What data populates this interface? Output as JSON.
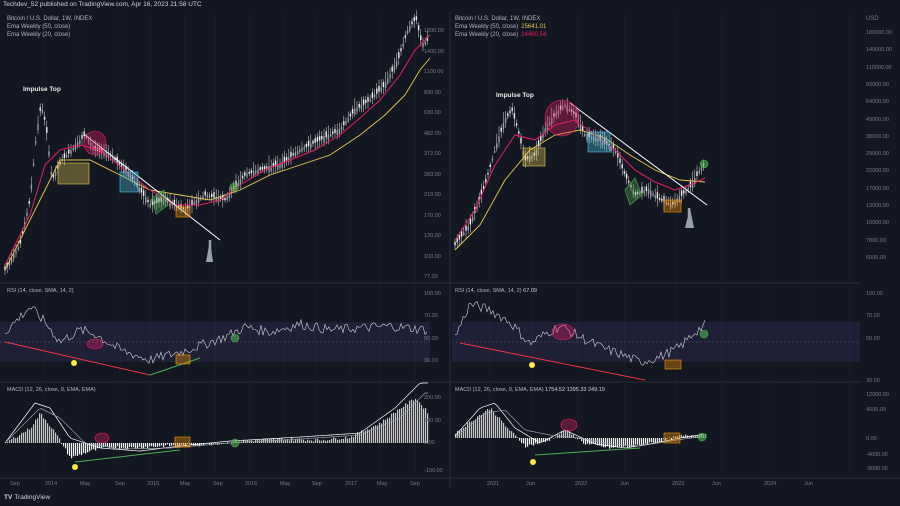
{
  "header": {
    "text": "Techdev_52 published on TradingView.com, Apr 16, 2023 21:58 UTC"
  },
  "brand": {
    "mark": "TV",
    "text": "TradingView"
  },
  "left": {
    "legend_title": "Bitcoin / U.S. Dollar, 1W, INDEX",
    "ema50": "Ema Weekly (50, close)",
    "ema20": "Ema Weekly (20, close)",
    "annotation": "Impulse Top",
    "rsi_legend": "RSI (14, close, SMA, 14, 2)",
    "macd_legend": "MACD (12, 26, close, 9, EMA, EMA)",
    "price_ticks": [
      "1800.00",
      "1400.00",
      "1100.00",
      "830.00",
      "630.00",
      "482.00",
      "372.00",
      "283.00",
      "219.00",
      "170.00",
      "130.00",
      "100.00",
      "77.00"
    ],
    "rsi_ticks": [
      "100.00",
      "70.00",
      "50.00",
      "30.00"
    ],
    "macd_ticks": [
      "200.00",
      "100.00",
      "0.00",
      "-100.00"
    ],
    "x_ticks": [
      "Sep",
      "2014",
      "May",
      "Sep",
      "2015",
      "May",
      "Sep",
      "2016",
      "May",
      "Sep",
      "2017",
      "May",
      "Sep"
    ]
  },
  "right": {
    "legend_title": "Bitcoin / U.S. Dollar, 1W, INDEX",
    "ema50": "Ema Weekly (50, close)",
    "ema50_val": "25641.01",
    "ema20": "Ema Weekly (20, close)",
    "ema20_val": "24460.54",
    "annotation": "Impulse Top",
    "rsi_legend": "RSI (14, close, SMA, 14, 2)",
    "rsi_val": "67.09",
    "macd_legend": "MACD (12, 26, close, 9, EMA, EMA)",
    "macd_vals": "1754.52  1395.33  249.19",
    "usd": "USD",
    "price_ticks": [
      "180000.00",
      "140000.00",
      "110000.00",
      "83000.00",
      "64000.00",
      "49000.00",
      "38000.00",
      "29000.00",
      "22000.00",
      "17000.00",
      "13000.00",
      "10000.00",
      "7800.00",
      "6000.00"
    ],
    "rsi_ticks": [
      "100.00",
      "70.00",
      "50.00",
      "30.00"
    ],
    "macd_ticks": [
      "12000.00",
      "4000.00",
      "0.00",
      "-4000.00",
      "-8000.00"
    ],
    "x_ticks": [
      "2021",
      "Jun",
      "2022",
      "Jun",
      "2023",
      "Jun",
      "2024",
      "Jun"
    ]
  },
  "colors": {
    "ema50": "#e6c94a",
    "ema20": "#e91e63",
    "candle": "#e0e0e0",
    "rsi": "#d1d4dc",
    "band": "#7e57c2",
    "trend_red": "#f23645",
    "trend_green": "#4caf50",
    "dot": "#ffeb3b",
    "grid": "#1f2330",
    "separator": "#2a2e39"
  },
  "chart_data": [
    {
      "type": "line",
      "panel": "left-price",
      "scale": "log",
      "x": [
        "2013-08",
        "2013-11",
        "2014-01",
        "2014-05",
        "2014-09",
        "2015-01",
        "2015-05",
        "2015-09",
        "2016-01",
        "2016-05",
        "2016-09",
        "2017-01",
        "2017-05",
        "2017-09"
      ],
      "series": [
        {
          "name": "Bitcoin / U.S. Dollar",
          "values": [
            100,
            400,
            900,
            500,
            450,
            230,
            230,
            240,
            420,
            440,
            600,
            900,
            1500,
            2800
          ]
        },
        {
          "name": "Ema Weekly (20, close)",
          "values": [
            95,
            300,
            700,
            600,
            480,
            300,
            240,
            250,
            380,
            430,
            570,
            800,
            1300,
            2300
          ]
        },
        {
          "name": "Ema Weekly (50, close)",
          "values": [
            80,
            160,
            400,
            530,
            500,
            380,
            290,
            270,
            320,
            390,
            500,
            680,
            1000,
            1700
          ]
        }
      ],
      "ylim": [
        77,
        2600
      ]
    },
    {
      "type": "line",
      "panel": "right-price",
      "scale": "log",
      "x": [
        "2020-12",
        "2021-02",
        "2021-04",
        "2021-07",
        "2021-11",
        "2022-02",
        "2022-06",
        "2022-11",
        "2023-01",
        "2023-04"
      ],
      "series": [
        {
          "name": "Bitcoin / U.S. Dollar",
          "values": [
            23000,
            48000,
            60000,
            33000,
            65000,
            40000,
            20000,
            16000,
            21000,
            30000
          ]
        },
        {
          "name": "Ema Weekly (20, close)",
          "values": [
            19000,
            36000,
            50000,
            42000,
            55000,
            45000,
            28000,
            19000,
            19500,
            24460.54
          ]
        },
        {
          "name": "Ema Weekly (50, close)",
          "values": [
            14000,
            24000,
            36000,
            38000,
            47000,
            45000,
            35000,
            24000,
            22000,
            25641.01
          ]
        }
      ],
      "ylim": [
        6000,
        200000
      ]
    },
    {
      "type": "line",
      "panel": "left-rsi",
      "x": [
        "2013-08",
        "2014-01",
        "2014-09",
        "2015-01",
        "2015-09",
        "2016-05",
        "2017-01",
        "2017-09"
      ],
      "series": [
        {
          "name": "RSI",
          "values": [
            78,
            60,
            38,
            30,
            45,
            68,
            64,
            62
          ]
        }
      ],
      "ylim": [
        20,
        100
      ]
    },
    {
      "type": "line",
      "panel": "right-rsi",
      "x": [
        "2021-01",
        "2021-07",
        "2021-11",
        "2022-06",
        "2022-11",
        "2023-04"
      ],
      "series": [
        {
          "name": "RSI",
          "values": [
            88,
            42,
            66,
            28,
            33,
            67.09
          ]
        }
      ],
      "ylim": [
        20,
        100
      ]
    }
  ]
}
